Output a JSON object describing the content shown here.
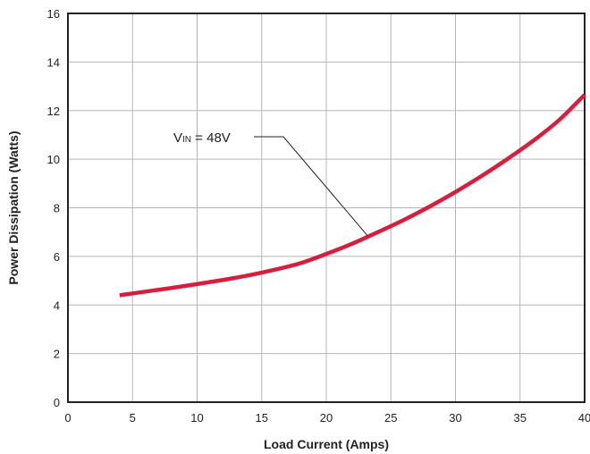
{
  "chart_data": {
    "type": "line",
    "xlabel": "Load Current (Amps)",
    "ylabel": "Power Dissipation (Watts)",
    "xlim": [
      0,
      40
    ],
    "ylim": [
      0,
      16
    ],
    "xticks": [
      "0",
      "5",
      "10",
      "15",
      "20",
      "25",
      "30",
      "35",
      "40"
    ],
    "yticks": [
      "0",
      "2",
      "4",
      "6",
      "8",
      "10",
      "12",
      "14",
      "16"
    ],
    "grid": true,
    "series": [
      {
        "color": "#d81e3d",
        "x": [
          4,
          6,
          8,
          10,
          12,
          14,
          16,
          18,
          20,
          22,
          24,
          26,
          28,
          30,
          32,
          34,
          36,
          38,
          40
        ],
        "y": [
          4.4,
          4.55,
          4.7,
          4.86,
          5.03,
          5.22,
          5.45,
          5.72,
          6.1,
          6.52,
          7.0,
          7.5,
          8.05,
          8.65,
          9.3,
          10.0,
          10.75,
          11.6,
          12.65
        ]
      }
    ],
    "annotations": [
      {
        "label_main": "V",
        "label_sub": "IN",
        "label_rest": " = 48V",
        "points_to": {
          "x": 23.2,
          "y": 6.85
        }
      }
    ]
  }
}
